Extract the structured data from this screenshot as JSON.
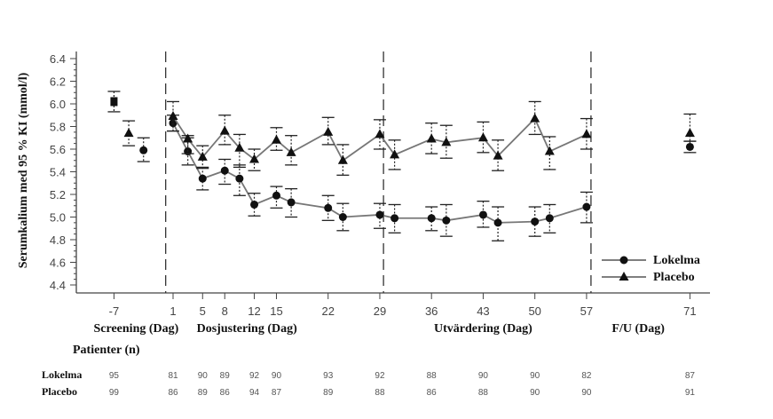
{
  "chart_data": {
    "type": "line",
    "title": "",
    "ylabel": "Serumkalium med 95 % KI (mmol/l)",
    "xlabel": "",
    "ylim": [
      4.4,
      6.4
    ],
    "yticks": [
      "6.4",
      "6.2",
      "6.0",
      "5.8",
      "5.6",
      "5.4",
      "5.2",
      "5.0",
      "4.8",
      "4.6",
      "4.4"
    ],
    "xlim": [
      -14,
      80
    ],
    "xticks": [
      {
        "day": -7,
        "label": "-7"
      },
      {
        "day": 1,
        "label": "1"
      },
      {
        "day": 5,
        "label": "5"
      },
      {
        "day": 8,
        "label": "8"
      },
      {
        "day": 12,
        "label": "12"
      },
      {
        "day": 15,
        "label": "15"
      },
      {
        "day": 22,
        "label": "22"
      },
      {
        "day": 29,
        "label": "29"
      },
      {
        "day": 36,
        "label": "36"
      },
      {
        "day": 43,
        "label": "43"
      },
      {
        "day": 50,
        "label": "50"
      },
      {
        "day": 57,
        "label": "57"
      },
      {
        "day": 71,
        "label": "71"
      }
    ],
    "phase_dividers": [
      0,
      29.5,
      57.6
    ],
    "phase_labels": [
      {
        "label": "Screening (Dag)",
        "day": -4
      },
      {
        "label": "Dosjustering (Dag)",
        "day": 11
      },
      {
        "label": "Utvärdering (Dag)",
        "day": 43
      },
      {
        "label": "F/U (Dag)",
        "day": 64
      }
    ],
    "grid": false,
    "legend": {
      "position": "bottom-right"
    },
    "screening": [
      {
        "day": -7,
        "mean": 6.02,
        "lo": 5.93,
        "hi": 6.11,
        "marker": "square"
      },
      {
        "day": -5,
        "mean": 5.74,
        "lo": 5.63,
        "hi": 5.85,
        "marker": "triangle"
      },
      {
        "day": -3,
        "mean": 5.59,
        "lo": 5.49,
        "hi": 5.7,
        "marker": "circle"
      }
    ],
    "series": [
      {
        "name": "Lokelma",
        "marker": "circle",
        "points": [
          {
            "day": 1,
            "mean": 5.83,
            "lo": 5.76,
            "hi": 5.9
          },
          {
            "day": 3,
            "mean": 5.58,
            "lo": 5.46,
            "hi": 5.7
          },
          {
            "day": 5,
            "mean": 5.34,
            "lo": 5.24,
            "hi": 5.44
          },
          {
            "day": 8,
            "mean": 5.41,
            "lo": 5.29,
            "hi": 5.51
          },
          {
            "day": 10,
            "mean": 5.34,
            "lo": 5.19,
            "hi": 5.46
          },
          {
            "day": 12,
            "mean": 5.11,
            "lo": 5.01,
            "hi": 5.21
          },
          {
            "day": 15,
            "mean": 5.19,
            "lo": 5.08,
            "hi": 5.27
          },
          {
            "day": 17,
            "mean": 5.13,
            "lo": 5.0,
            "hi": 5.25
          },
          {
            "day": 22,
            "mean": 5.08,
            "lo": 4.97,
            "hi": 5.19
          },
          {
            "day": 24,
            "mean": 5.0,
            "lo": 4.88,
            "hi": 5.12
          },
          {
            "day": 29,
            "mean": 5.02,
            "lo": 4.9,
            "hi": 5.12
          },
          {
            "day": 31,
            "mean": 4.99,
            "lo": 4.86,
            "hi": 5.11
          },
          {
            "day": 36,
            "mean": 4.99,
            "lo": 4.88,
            "hi": 5.09
          },
          {
            "day": 38,
            "mean": 4.97,
            "lo": 4.83,
            "hi": 5.11
          },
          {
            "day": 43,
            "mean": 5.02,
            "lo": 4.91,
            "hi": 5.14
          },
          {
            "day": 45,
            "mean": 4.95,
            "lo": 4.79,
            "hi": 5.09
          },
          {
            "day": 50,
            "mean": 4.96,
            "lo": 4.83,
            "hi": 5.09
          },
          {
            "day": 52,
            "mean": 4.99,
            "lo": 4.86,
            "hi": 5.11
          },
          {
            "day": 57,
            "mean": 5.09,
            "lo": 4.95,
            "hi": 5.22
          },
          {
            "day": 71,
            "mean": 5.62,
            "lo": 5.57,
            "hi": 5.67
          }
        ]
      },
      {
        "name": "Placebo",
        "marker": "triangle",
        "points": [
          {
            "day": 1,
            "mean": 5.89,
            "lo": 5.76,
            "hi": 6.02
          },
          {
            "day": 3,
            "mean": 5.69,
            "lo": 5.56,
            "hi": 5.72
          },
          {
            "day": 5,
            "mean": 5.53,
            "lo": 5.43,
            "hi": 5.63
          },
          {
            "day": 8,
            "mean": 5.76,
            "lo": 5.64,
            "hi": 5.9
          },
          {
            "day": 10,
            "mean": 5.61,
            "lo": 5.44,
            "hi": 5.73
          },
          {
            "day": 12,
            "mean": 5.51,
            "lo": 5.41,
            "hi": 5.6
          },
          {
            "day": 15,
            "mean": 5.68,
            "lo": 5.59,
            "hi": 5.79
          },
          {
            "day": 17,
            "mean": 5.57,
            "lo": 5.46,
            "hi": 5.72
          },
          {
            "day": 22,
            "mean": 5.75,
            "lo": 5.64,
            "hi": 5.88
          },
          {
            "day": 24,
            "mean": 5.5,
            "lo": 5.37,
            "hi": 5.64
          },
          {
            "day": 29,
            "mean": 5.73,
            "lo": 5.6,
            "hi": 5.86
          },
          {
            "day": 31,
            "mean": 5.55,
            "lo": 5.42,
            "hi": 5.68
          },
          {
            "day": 36,
            "mean": 5.69,
            "lo": 5.56,
            "hi": 5.83
          },
          {
            "day": 38,
            "mean": 5.66,
            "lo": 5.52,
            "hi": 5.81
          },
          {
            "day": 43,
            "mean": 5.7,
            "lo": 5.57,
            "hi": 5.84
          },
          {
            "day": 45,
            "mean": 5.54,
            "lo": 5.41,
            "hi": 5.68
          },
          {
            "day": 50,
            "mean": 5.87,
            "lo": 5.73,
            "hi": 6.02
          },
          {
            "day": 52,
            "mean": 5.58,
            "lo": 5.42,
            "hi": 5.71
          },
          {
            "day": 57,
            "mean": 5.73,
            "lo": 5.6,
            "hi": 5.87
          },
          {
            "day": 71,
            "mean": 5.74,
            "lo": 5.67,
            "hi": 5.91
          }
        ]
      }
    ]
  },
  "patients": {
    "title": "Patienter (n)",
    "rows": [
      {
        "name": "Lokelma",
        "counts": [
          {
            "day": -7,
            "n": "95"
          },
          {
            "day": 1,
            "n": "81"
          },
          {
            "day": 5,
            "n": "90"
          },
          {
            "day": 8,
            "n": "89"
          },
          {
            "day": 12,
            "n": "92"
          },
          {
            "day": 15,
            "n": "90"
          },
          {
            "day": 22,
            "n": "93"
          },
          {
            "day": 29,
            "n": "92"
          },
          {
            "day": 36,
            "n": "88"
          },
          {
            "day": 43,
            "n": "90"
          },
          {
            "day": 50,
            "n": "90"
          },
          {
            "day": 57,
            "n": "82"
          },
          {
            "day": 71,
            "n": "87"
          }
        ]
      },
      {
        "name": "Placebo",
        "counts": [
          {
            "day": -7,
            "n": "99"
          },
          {
            "day": 1,
            "n": "86"
          },
          {
            "day": 5,
            "n": "89"
          },
          {
            "day": 8,
            "n": "86"
          },
          {
            "day": 12,
            "n": "94"
          },
          {
            "day": 15,
            "n": "87"
          },
          {
            "day": 22,
            "n": "89"
          },
          {
            "day": 29,
            "n": "88"
          },
          {
            "day": 36,
            "n": "86"
          },
          {
            "day": 43,
            "n": "88"
          },
          {
            "day": 50,
            "n": "90"
          },
          {
            "day": 57,
            "n": "90"
          },
          {
            "day": 71,
            "n": "91"
          }
        ]
      }
    ]
  },
  "legend": {
    "items": [
      {
        "label": "Lokelma",
        "marker": "circle"
      },
      {
        "label": "Placebo",
        "marker": "triangle"
      }
    ]
  }
}
